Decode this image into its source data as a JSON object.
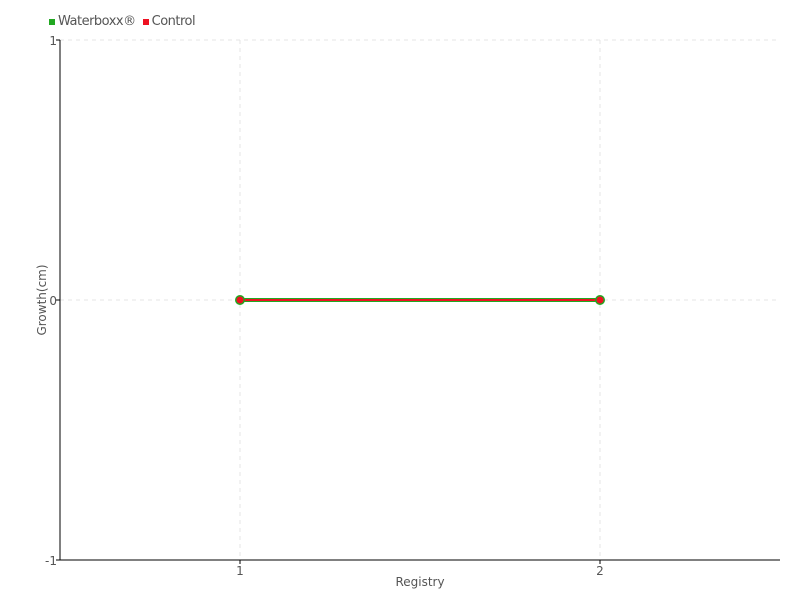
{
  "chart_data": {
    "type": "line",
    "title": "",
    "xlabel": "Registry",
    "ylabel": "Growth(cm)",
    "x": [
      1,
      2
    ],
    "xlim": [
      0.5,
      2.5
    ],
    "ylim": [
      -1,
      1
    ],
    "xticks": [
      "1",
      "2"
    ],
    "yticks": [
      "-1",
      "0",
      "1"
    ],
    "grid": true,
    "legend_position": "top-left",
    "series": [
      {
        "name": "Waterboxx®",
        "values": [
          0,
          0
        ],
        "color": "#22a822"
      },
      {
        "name": "Control",
        "values": [
          0,
          0
        ],
        "color": "#ee1122"
      }
    ]
  }
}
